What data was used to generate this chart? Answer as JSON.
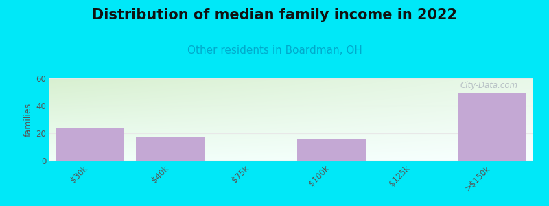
{
  "title": "Distribution of median family income in 2022",
  "subtitle": "Other residents in Boardman, OH",
  "subtitle_color": "#00aacc",
  "categories": [
    "$30k",
    "$40k",
    "$75k",
    "$100k",
    "$125k",
    ">$150k"
  ],
  "values": [
    24,
    17,
    0,
    16,
    0,
    49
  ],
  "bar_color": "#c4a8d4",
  "ylabel": "families",
  "ylim": [
    0,
    60
  ],
  "yticks": [
    0,
    20,
    40,
    60
  ],
  "background_color": "#00e8f8",
  "plot_bg_color_topleft": "#d8f0d0",
  "plot_bg_color_bottomright": "#f8ffff",
  "watermark": "City-Data.com",
  "title_fontsize": 15,
  "subtitle_fontsize": 11,
  "tick_label_color": "#555555",
  "grid_color": "#e8e8e8"
}
